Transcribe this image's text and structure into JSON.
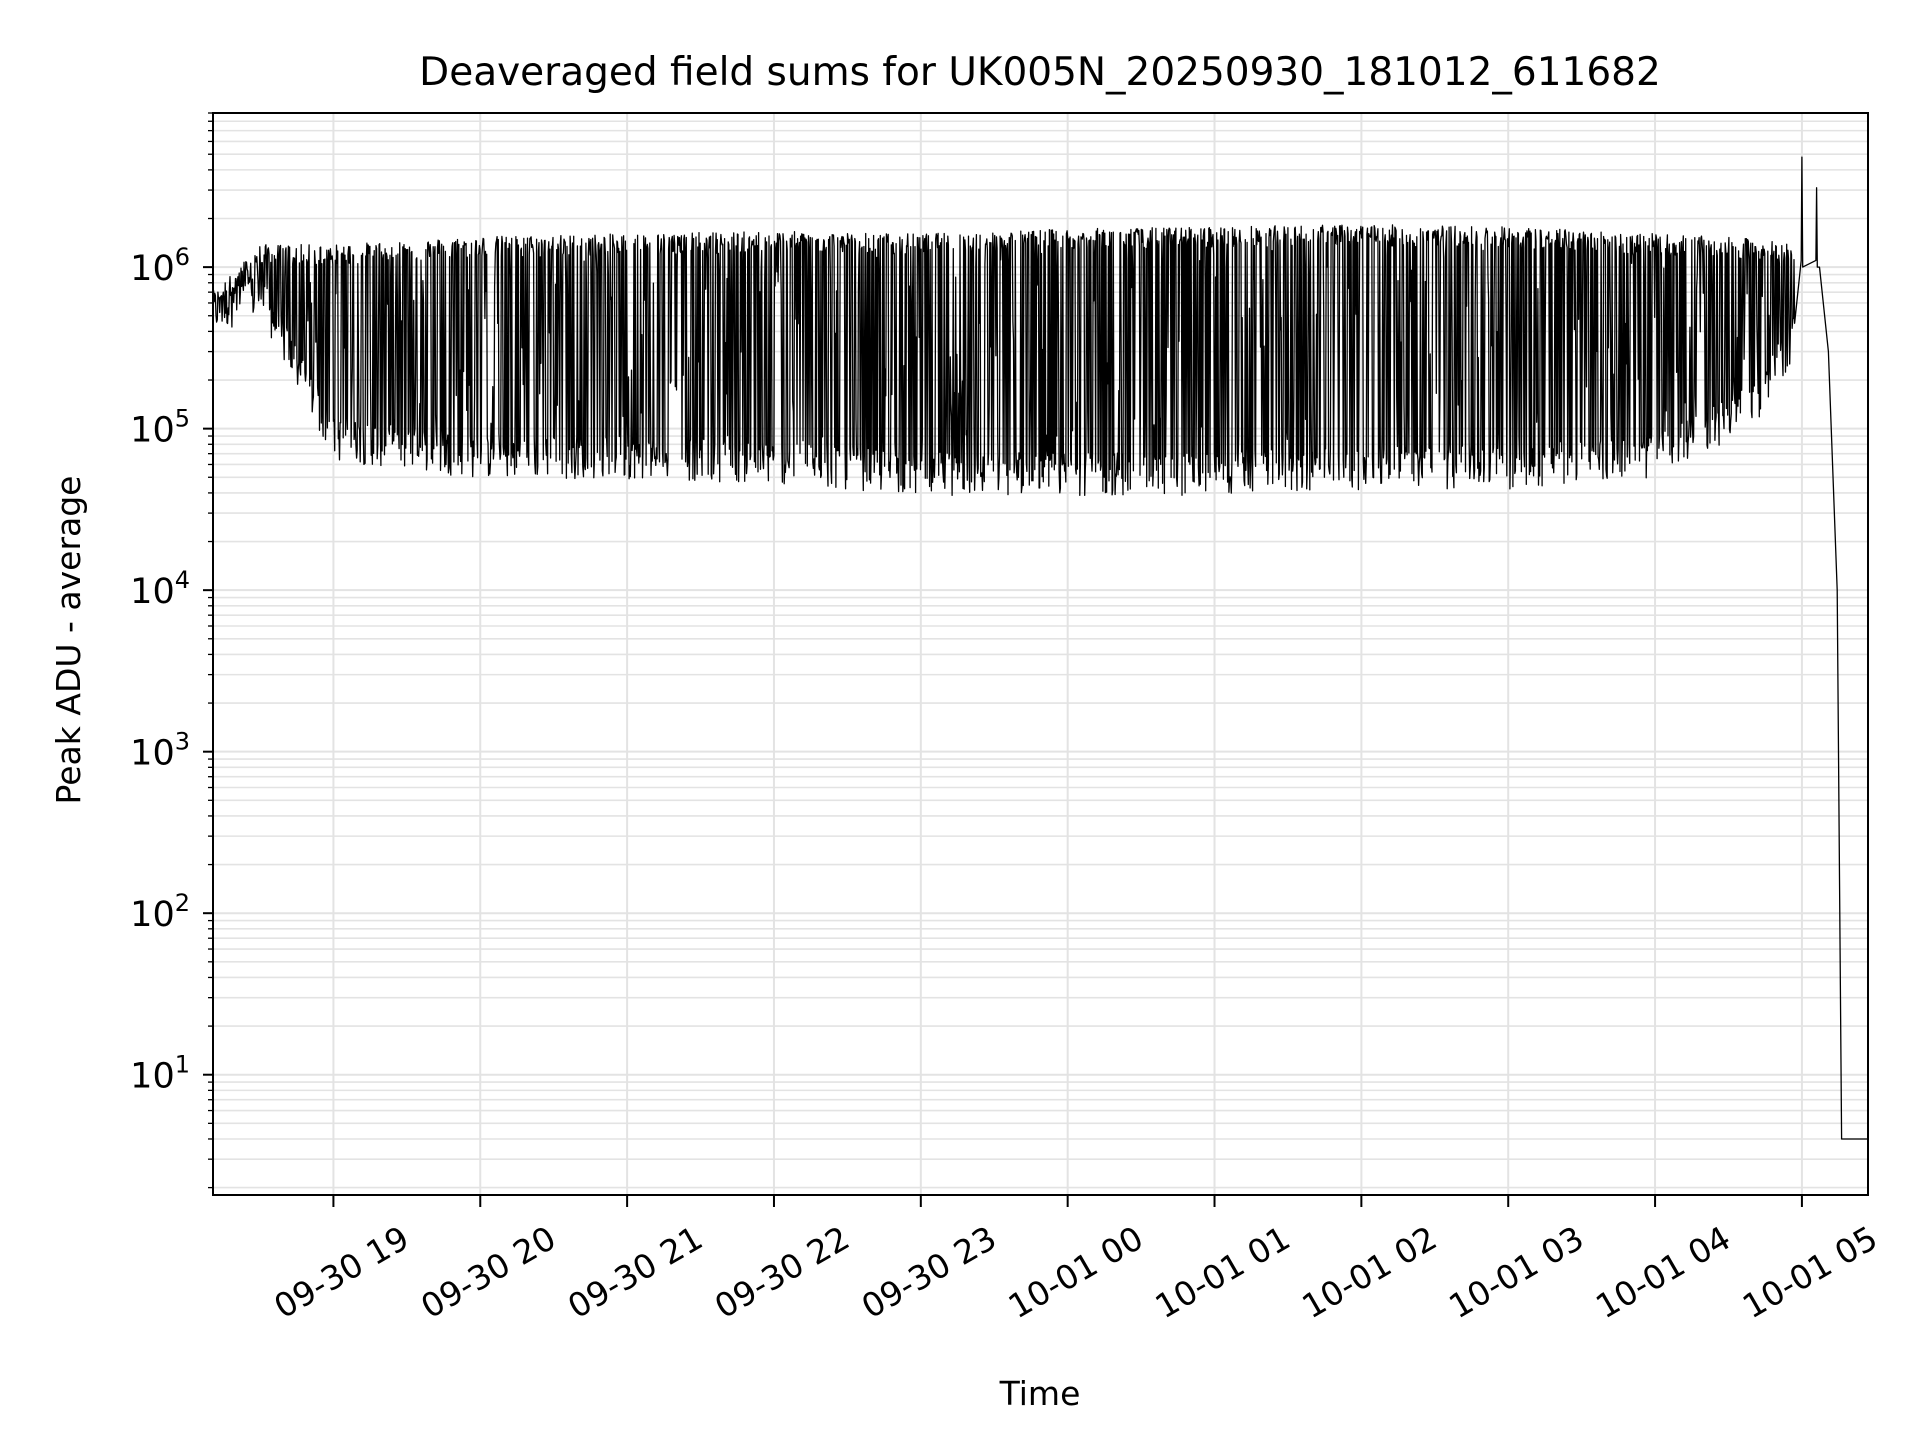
{
  "chart_data": {
    "type": "line",
    "title": "Deaveraged field sums for UK005N_20250930_181012_611682",
    "xlabel": "Time",
    "ylabel": "Peak ADU - average",
    "yscale": "log",
    "ylim": [
      1.8,
      9000000
    ],
    "xlim_hours": [
      -0.82,
      10.45
    ],
    "x_ticks": [
      {
        "label": "09-30 19",
        "hour": 0
      },
      {
        "label": "09-30 20",
        "hour": 1
      },
      {
        "label": "09-30 21",
        "hour": 2
      },
      {
        "label": "09-30 22",
        "hour": 3
      },
      {
        "label": "09-30 23",
        "hour": 4
      },
      {
        "label": "10-01 00",
        "hour": 5
      },
      {
        "label": "10-01 01",
        "hour": 6
      },
      {
        "label": "10-01 02",
        "hour": 7
      },
      {
        "label": "10-01 03",
        "hour": 8
      },
      {
        "label": "10-01 04",
        "hour": 9
      },
      {
        "label": "10-01 05",
        "hour": 10
      }
    ],
    "y_ticks": [
      {
        "base": "10",
        "exp": "1",
        "value": 10
      },
      {
        "base": "10",
        "exp": "2",
        "value": 100
      },
      {
        "base": "10",
        "exp": "3",
        "value": 1000
      },
      {
        "base": "10",
        "exp": "4",
        "value": 10000
      },
      {
        "base": "10",
        "exp": "5",
        "value": 100000
      },
      {
        "base": "10",
        "exp": "6",
        "value": 1000000
      }
    ],
    "grid": true,
    "series": [
      {
        "name": "field sum",
        "color": "#000000",
        "note": "dense oscillation between lower and upper envelopes; sampled points",
        "envelope_hours": [
          -0.82,
          -0.5,
          0,
          1,
          2,
          3,
          4,
          5,
          6,
          7,
          8,
          9,
          9.7,
          9.95
        ],
        "upper_envelope": [
          600000,
          1200000,
          1200000,
          1350000,
          1400000,
          1450000,
          1400000,
          1500000,
          1550000,
          1600000,
          1550000,
          1400000,
          1300000,
          1200000
        ],
        "lower_envelope": [
          550000,
          700000,
          90000,
          70000,
          70000,
          65000,
          55000,
          55000,
          55000,
          60000,
          60000,
          70000,
          150000,
          400000
        ],
        "spikes": [
          {
            "hour": 10.0,
            "value": 4800000
          },
          {
            "hour": 10.1,
            "value": 3100000
          }
        ],
        "tail": [
          {
            "hour": 10.12,
            "value": 1000000
          },
          {
            "hour": 10.18,
            "value": 300000
          },
          {
            "hour": 10.24,
            "value": 10000
          },
          {
            "hour": 10.27,
            "value": 4
          },
          {
            "hour": 10.45,
            "value": 4
          }
        ]
      }
    ]
  }
}
